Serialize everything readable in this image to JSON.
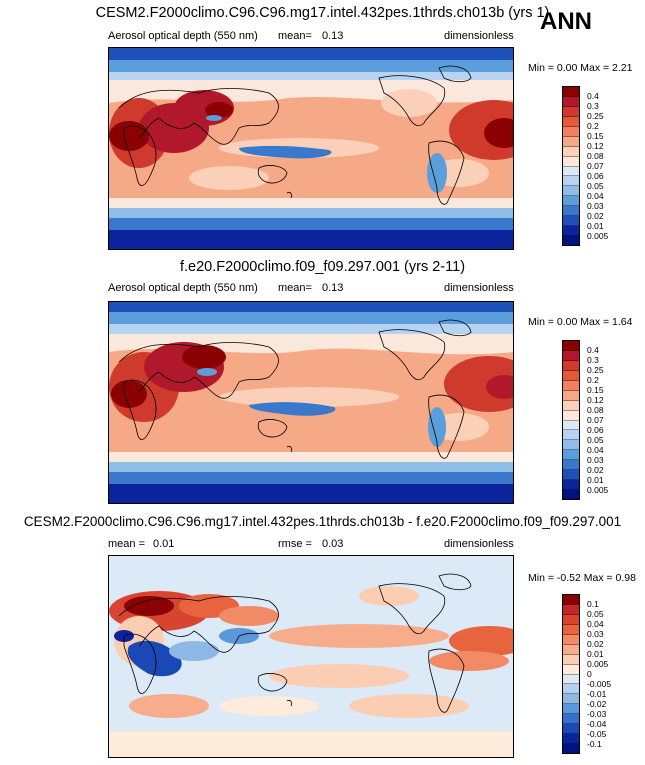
{
  "season": "ANN",
  "panels": [
    {
      "title": "CESM2.F2000climo.C96.C96.mg17.intel.432pes.1thrds.ch013b (yrs 1)",
      "left_label": "Aerosol optical depth (550 nm)",
      "mid_label": "mean=",
      "mid_value": "0.13",
      "units": "dimensionless",
      "minmax_text": "Min =  0.00 Max =   2.21",
      "colorbar": {
        "levels": [
          "0.4",
          "0.3",
          "0.25",
          "0.2",
          "0.15",
          "0.12",
          "0.08",
          "0.07",
          "0.06",
          "0.05",
          "0.04",
          "0.03",
          "0.02",
          "0.01",
          "0.005"
        ],
        "colors": [
          "#8b0000",
          "#b2182b",
          "#cf3a2c",
          "#e35a3a",
          "#f08060",
          "#f6a987",
          "#fbd0b8",
          "#fbe8dc",
          "#dbe9f6",
          "#b7d3ef",
          "#8fbde7",
          "#5a9fdb",
          "#3a78cc",
          "#1f4fb8",
          "#0b239c",
          "#00137f"
        ]
      }
    },
    {
      "title": "f.e20.F2000climo.f09_f09.297.001 (yrs 2-11)",
      "left_label": "Aerosol optical depth (550 nm)",
      "mid_label": "mean=",
      "mid_value": "0.13",
      "units": "dimensionless",
      "minmax_text": "Min =  0.00 Max =   1.64",
      "colorbar": {
        "levels": [
          "0.4",
          "0.3",
          "0.25",
          "0.2",
          "0.15",
          "0.12",
          "0.08",
          "0.07",
          "0.06",
          "0.05",
          "0.04",
          "0.03",
          "0.02",
          "0.01",
          "0.005"
        ],
        "colors": [
          "#8b0000",
          "#b2182b",
          "#cf3a2c",
          "#e35a3a",
          "#f08060",
          "#f6a987",
          "#fbd0b8",
          "#fbe8dc",
          "#dbe9f6",
          "#b7d3ef",
          "#8fbde7",
          "#5a9fdb",
          "#3a78cc",
          "#1f4fb8",
          "#0b239c",
          "#00137f"
        ]
      }
    },
    {
      "title": "CESM2.F2000climo.C96.C96.mg17.intel.432pes.1thrds.ch013b - f.e20.F2000climo.f09_f09.297.001",
      "left_label": "mean =",
      "left_value": "0.01",
      "mid_label": "rmse =",
      "mid_value": "0.03",
      "units": "dimensionless",
      "minmax_text": "Min = -0.52 Max =   0.98",
      "colorbar": {
        "levels": [
          "0.1",
          "0.05",
          "0.04",
          "0.03",
          "0.02",
          "0.01",
          "0.005",
          "0",
          "-0.005",
          "-0.01",
          "-0.02",
          "-0.03",
          "-0.04",
          "-0.05",
          "-0.1"
        ],
        "colors": [
          "#8b0000",
          "#c0282a",
          "#d94430",
          "#e8643f",
          "#f28a66",
          "#f7ac8b",
          "#fbceb3",
          "#fdebdc",
          "#dce9f7",
          "#b5d0ef",
          "#8db8e6",
          "#5a98da",
          "#3471ca",
          "#1a49b5",
          "#0b239c",
          "#00137f"
        ]
      }
    }
  ]
}
